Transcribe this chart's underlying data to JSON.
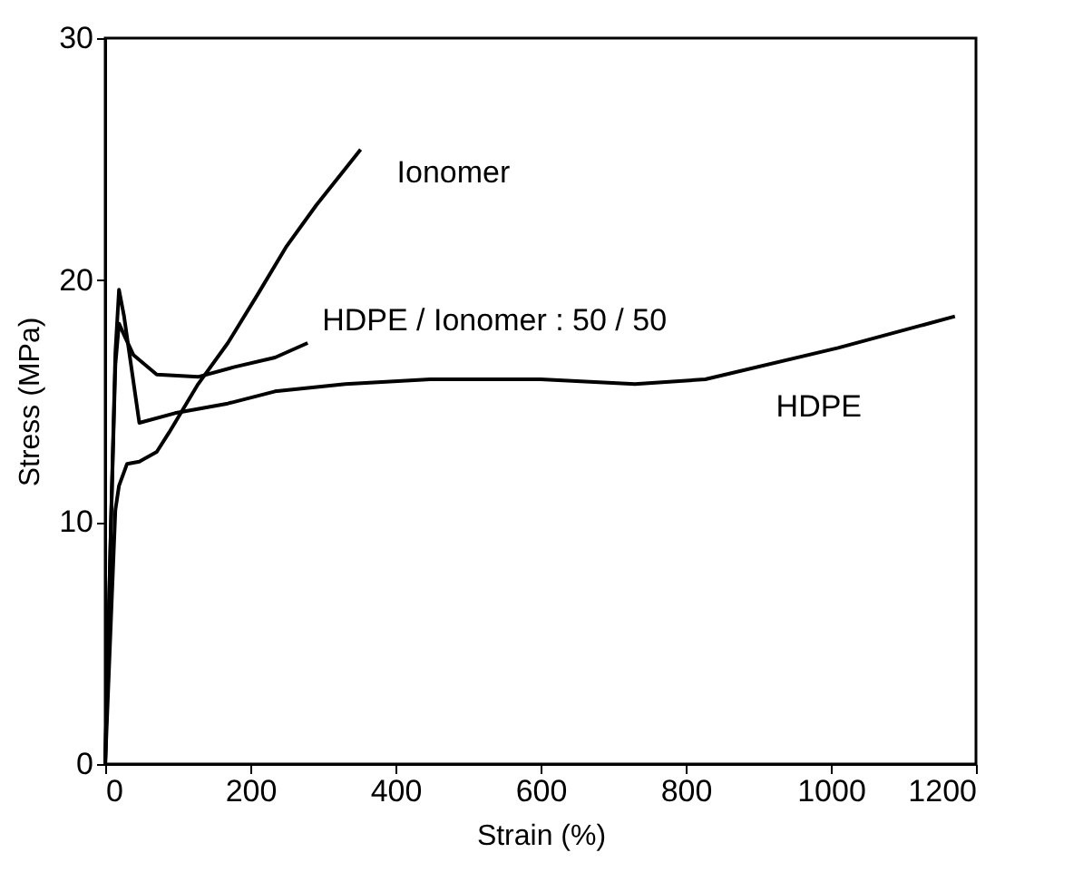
{
  "chart_data": {
    "type": "line",
    "xlabel": "Strain (%)",
    "ylabel": "Stress (MPa)",
    "xlim": [
      0,
      1200
    ],
    "ylim": [
      0,
      30
    ],
    "xticks": [
      0,
      200,
      400,
      600,
      800,
      1000,
      1200
    ],
    "yticks": [
      0,
      10,
      20,
      30
    ],
    "grid": false,
    "legend": false,
    "marker": "none",
    "line_style": "solid",
    "series": [
      {
        "name": "Ionomer",
        "color": "#000000",
        "x": [
          0,
          8,
          14,
          19,
          30,
          47,
          71,
          88,
          128,
          169,
          210,
          250,
          291,
          352
        ],
        "values": [
          0,
          6,
          10.5,
          11.5,
          12.4,
          12.5,
          12.9,
          13.7,
          15.7,
          17.4,
          19.4,
          21.4,
          23.1,
          25.4
        ]
      },
      {
        "name": "HDPE / Ionomer : 50 / 50",
        "color": "#000000",
        "x": [
          0,
          8,
          14,
          19,
          28,
          39,
          71,
          128,
          177,
          234,
          279
        ],
        "values": [
          0,
          10,
          16.5,
          18.2,
          17.6,
          16.9,
          16.1,
          16.0,
          16.4,
          16.8,
          17.4
        ]
      },
      {
        "name": "HDPE",
        "color": "#000000",
        "x": [
          0,
          8,
          14,
          19,
          26,
          47,
          96,
          169,
          234,
          331,
          448,
          600,
          730,
          827,
          1010,
          1171
        ],
        "values": [
          0,
          10,
          17,
          19.6,
          18.5,
          14.1,
          14.5,
          14.9,
          15.4,
          15.7,
          15.9,
          15.9,
          15.7,
          15.9,
          17.2,
          18.5
        ]
      }
    ]
  }
}
